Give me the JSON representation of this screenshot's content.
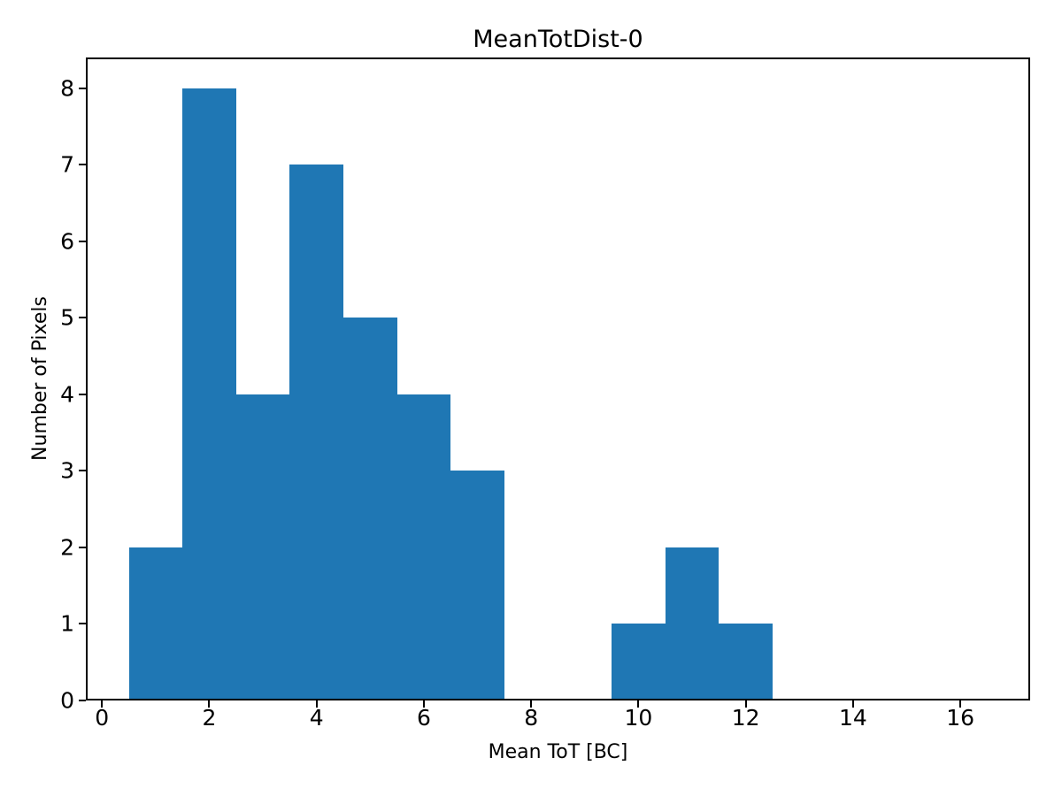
{
  "chart_data": {
    "type": "bar",
    "subtype": "histogram",
    "title": "MeanTotDist-0",
    "xlabel": "Mean ToT [BC]",
    "ylabel": "Number of Pixels",
    "bin_edges": [
      0.5,
      1.5,
      2.5,
      3.5,
      4.5,
      5.5,
      6.5,
      7.5,
      8.5,
      9.5,
      10.5,
      11.5,
      12.5,
      13.5,
      14.5,
      15.5,
      16.5
    ],
    "counts": [
      2,
      8,
      4,
      7,
      5,
      4,
      3,
      0,
      0,
      1,
      2,
      1,
      0,
      0,
      0,
      0
    ],
    "xlim": [
      -0.3,
      17.3
    ],
    "ylim": [
      0,
      8.4
    ],
    "xticks": [
      0,
      2,
      4,
      6,
      8,
      10,
      12,
      14,
      16
    ],
    "yticks": [
      0,
      1,
      2,
      3,
      4,
      5,
      6,
      7,
      8
    ],
    "grid": false,
    "legend": "none",
    "bar_color": "#1f77b4",
    "axis_color": "#000000",
    "background_color": "#ffffff"
  }
}
